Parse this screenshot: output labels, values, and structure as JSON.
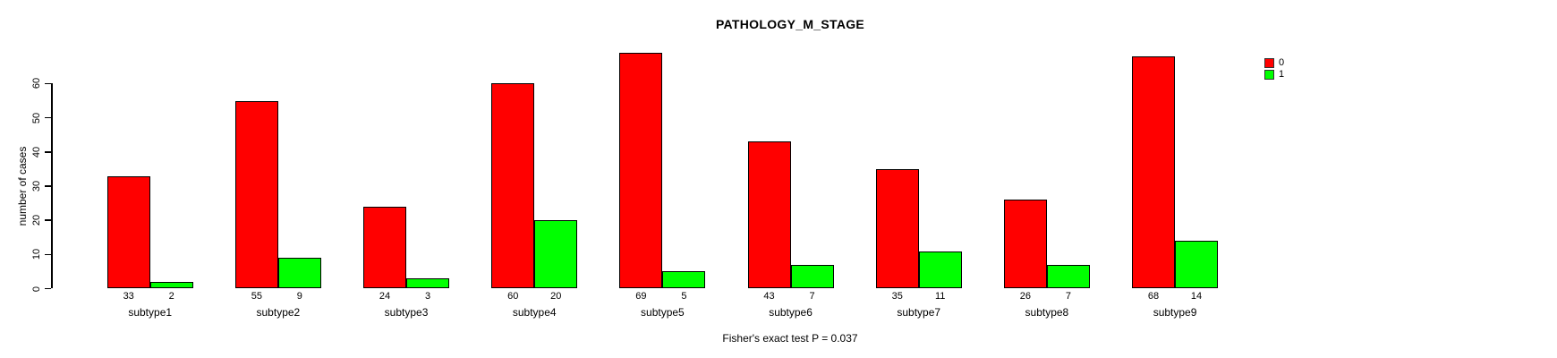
{
  "title": "PATHOLOGY_M_STAGE",
  "annotation": "Fisher's exact test P = 0.037",
  "y_axis": {
    "label": "number of cases",
    "ticks": [
      0,
      10,
      20,
      30,
      40,
      50,
      60
    ]
  },
  "legend": {
    "items": [
      {
        "label": "0",
        "color": "#ff0000"
      },
      {
        "label": "1",
        "color": "#00ff00"
      }
    ]
  },
  "chart_data": {
    "type": "bar",
    "title": "PATHOLOGY_M_STAGE",
    "xlabel": "",
    "ylabel": "number of cases",
    "categories": [
      "subtype1",
      "subtype2",
      "subtype3",
      "subtype4",
      "subtype5",
      "subtype6",
      "subtype7",
      "subtype8",
      "subtype9"
    ],
    "series": [
      {
        "name": "0",
        "color": "#ff0000",
        "values": [
          33,
          55,
          24,
          60,
          69,
          43,
          35,
          26,
          68
        ]
      },
      {
        "name": "1",
        "color": "#00ff00",
        "values": [
          2,
          9,
          3,
          20,
          5,
          7,
          11,
          7,
          14
        ]
      }
    ],
    "bar_value_labels": [
      [
        33,
        55,
        24,
        60,
        69,
        43,
        35,
        26,
        68
      ],
      [
        2,
        9,
        3,
        20,
        5,
        7,
        11,
        7,
        14
      ]
    ],
    "ylim": [
      0,
      72
    ],
    "yticks": [
      0,
      10,
      20,
      30,
      40,
      50,
      60
    ],
    "grid": false,
    "legend_position": "top-right",
    "annotation": "Fisher's exact test P = 0.037"
  }
}
